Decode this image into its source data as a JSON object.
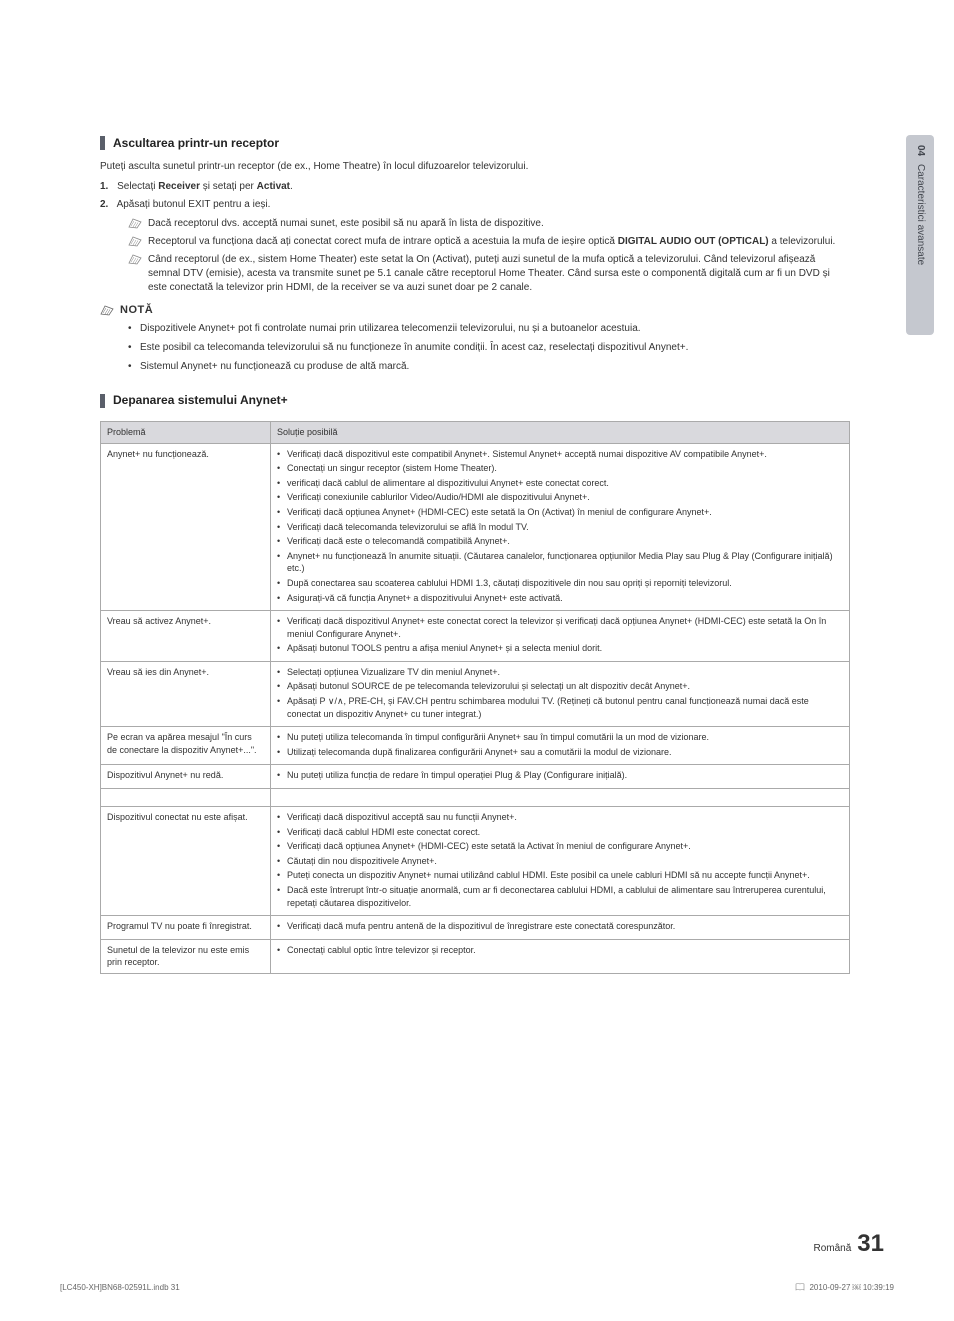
{
  "side_tab": {
    "num": "04",
    "label": "Caracteristici avansate"
  },
  "section1": {
    "title": "Ascultarea printr-un receptor",
    "intro": "Puteți asculta sunetul printr-un receptor (de ex., Home Theatre) în locul difuzoarelor televizorului.",
    "step1_num": "1.",
    "step1_pre": "Selectați ",
    "step1_b1": "Receiver",
    "step1_mid": " și setați per ",
    "step1_b2": "Activat",
    "step1_post": ".",
    "step2_num": "2.",
    "step2_text": "Apăsați butonul EXIT pentru a ieși.",
    "sub1": "Dacă receptorul dvs. acceptă numai sunet, este posibil să nu apară în lista de dispozitive.",
    "sub2_pre": "Receptorul va funcționa dacă ați conectat corect mufa de intrare optică a acestuia la mufa de ieșire optică ",
    "sub2_b": "DIGITAL AUDIO OUT (OPTICAL)",
    "sub2_post": " a televizorului.",
    "sub3": "Când receptorul (de ex., sistem Home Theater) este setat la On (Activat), puteți auzi sunetul de la mufa optică a televizorului. Când televizorul afișează semnal DTV (emisie), acesta va transmite sunet pe 5.1 canale către receptorul Home Theater. Când sursa este o componentă digitală cum ar fi un DVD și este conectată la televizor prin HDMI, de la receiver se va auzi sunet doar pe 2 canale.",
    "nota_label": "NOTĂ",
    "nota1": "Dispozitivele Anynet+ pot fi controlate numai prin utilizarea telecomenzii televizorului, nu și a butoanelor acestuia.",
    "nota2": "Este posibil ca telecomanda televizorului să nu funcționeze în anumite condiții. În acest caz, reselectați dispozitivul Anynet+.",
    "nota3": "Sistemul Anynet+ nu funcționează cu produse de altă marcă."
  },
  "section2": {
    "title": "Depanarea sistemului Anynet+",
    "th1": "Problemă",
    "th2": "Soluție posibilă",
    "rows": [
      {
        "problem": "Anynet+ nu funcționează.",
        "solutions": [
          "Verificați dacă dispozitivul este compatibil Anynet+. Sistemul Anynet+ acceptă numai dispozitive AV compatibile Anynet+.",
          "Conectați un singur receptor (sistem Home Theater).",
          "verificați dacă cablul de alimentare al dispozitivului Anynet+ este conectat corect.",
          "Verificați conexiunile cablurilor Video/Audio/HDMI ale dispozitivului Anynet+.",
          "Verificați dacă opțiunea Anynet+ (HDMI-CEC) este setată la On (Activat) în meniul de configurare Anynet+.",
          "Verificați dacă telecomanda televizorului se află în modul TV.",
          "Verificați dacă este o telecomandă compatibilă Anynet+.",
          "Anynet+ nu funcționează în anumite situații. (Căutarea canalelor, funcționarea opțiunilor Media Play sau Plug & Play (Configurare inițială) etc.)",
          "După conectarea sau scoaterea cablului HDMI 1.3, căutați dispozitivele din nou sau opriți și reporniți televizorul.",
          "Asigurați-vă că funcția Anynet+ a dispozitivului Anynet+ este activată."
        ]
      },
      {
        "problem": "Vreau să activez Anynet+.",
        "solutions": [
          "Verificați dacă dispozitivul Anynet+ este conectat corect la televizor și verificați dacă opțiunea Anynet+ (HDMI-CEC) este setată la On în meniul Configurare Anynet+.",
          "Apăsați butonul TOOLS pentru a afișa meniul Anynet+ și a selecta meniul dorit."
        ]
      },
      {
        "problem": "Vreau să ies din Anynet+.",
        "solutions": [
          "Selectați opțiunea Vizualizare TV din meniul Anynet+.",
          "Apăsați butonul SOURCE de pe telecomanda televizorului și selectați un alt dispozitiv decât Anynet+.",
          "Apăsați P ∨/∧, PRE-CH, și FAV.CH pentru schimbarea modului TV. (Rețineți că butonul pentru canal funcționează numai dacă este conectat un dispozitiv Anynet+ cu tuner integrat.)"
        ]
      },
      {
        "problem": "Pe ecran va apărea mesajul \"În curs de conectare la dispozitiv Anynet+...\".",
        "solutions": [
          "Nu puteți utiliza telecomanda în timpul configurării Anynet+ sau în timpul comutării la un mod de vizionare.",
          "Utilizați telecomanda după finalizarea configurării Anynet+ sau a comutării la modul de vizionare."
        ]
      },
      {
        "problem": "Dispozitivul Anynet+ nu redă.",
        "solutions": [
          "Nu puteți utiliza funcția de redare în timpul operației Plug & Play (Configurare inițială)."
        ]
      },
      {
        "problem": "Dispozitivul conectat nu este afișat.",
        "solutions": [
          "Verificați dacă dispozitivul acceptă sau nu funcții Anynet+.",
          "Verificați dacă cablul HDMI este conectat corect.",
          "Verificați dacă opțiunea Anynet+ (HDMI-CEC) este setată la Activat în meniul de configurare Anynet+.",
          "Căutați din nou dispozitivele Anynet+.",
          "Puteți conecta un dispozitiv Anynet+ numai utilizând cablul HDMI. Este posibil ca unele cabluri HDMI să nu accepte funcții Anynet+.",
          "Dacă este întrerupt într-o situație anormală, cum ar fi deconectarea cablului HDMI, a cablului de alimentare sau întreruperea curentului, repetați căutarea dispozitivelor."
        ]
      },
      {
        "problem": "Programul TV nu poate fi înregistrat.",
        "solutions": [
          "Verificați dacă mufa pentru antenă de la dispozitivul de înregistrare este conectată corespunzător."
        ]
      },
      {
        "problem": "Sunetul de la televizor nu este emis prin receptor.",
        "solutions": [
          "Conectați cablul optic între televizor și receptor."
        ]
      }
    ]
  },
  "footer": {
    "lang": "Română",
    "page": "31"
  },
  "footer_left": "[LC450-XH]BN68-02591L.indb   31",
  "footer_right": "2010-09-27   ￼ 10:39:19",
  "colors": {
    "side_bg": "#c5c8cf",
    "bar": "#5a5f6a",
    "th_bg": "#d9d9dd",
    "border": "#aaaaaa"
  }
}
